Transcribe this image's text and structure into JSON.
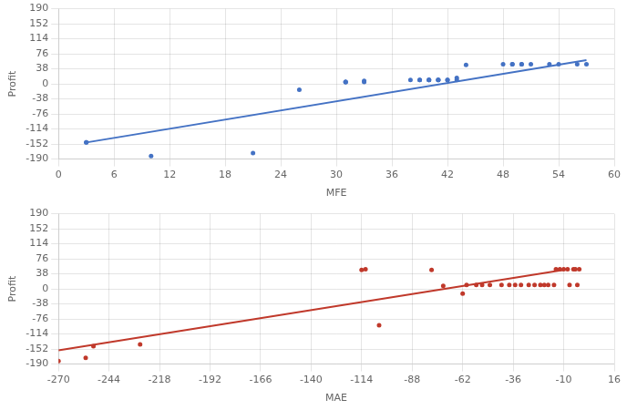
{
  "chart_data": [
    {
      "type": "scatter",
      "xlabel": "MFE",
      "ylabel": "Profit",
      "xlim": [
        0,
        60
      ],
      "xticks": [
        0,
        6,
        12,
        18,
        24,
        30,
        36,
        42,
        48,
        54,
        60
      ],
      "ylim": [
        -190,
        190
      ],
      "yticks": [
        -190,
        -152,
        -114,
        -76,
        -38,
        0,
        38,
        76,
        114,
        152,
        190
      ],
      "grid": true,
      "series": [
        {
          "type": "line",
          "color": "#4472c4",
          "x": [
            3,
            57
          ],
          "values": [
            -148,
            60
          ]
        },
        {
          "type": "scatter",
          "color": "#4472c4",
          "x": [
            3,
            3,
            10,
            21,
            26,
            31,
            31,
            31,
            33,
            33,
            38,
            39,
            39,
            40,
            40,
            40,
            41,
            41,
            41,
            42,
            42,
            43,
            43,
            44,
            48,
            49,
            49,
            50,
            50,
            51,
            53,
            54,
            56,
            57
          ],
          "values": [
            -148,
            -148,
            -182,
            -175,
            -15,
            5,
            5,
            5,
            5,
            8,
            10,
            10,
            10,
            10,
            10,
            10,
            10,
            10,
            10,
            10,
            10,
            10,
            15,
            48,
            50,
            50,
            50,
            50,
            50,
            50,
            50,
            50,
            50,
            50
          ]
        }
      ]
    },
    {
      "type": "scatter",
      "xlabel": "MAE",
      "ylabel": "Profit",
      "xlim": [
        -270,
        16
      ],
      "xticks": [
        -270,
        -244,
        -218,
        -192,
        -166,
        -140,
        -114,
        -88,
        -62,
        -36,
        -10,
        16
      ],
      "ylim": [
        -190,
        190
      ],
      "yticks": [
        -190,
        -152,
        -114,
        -76,
        -38,
        0,
        38,
        76,
        114,
        152,
        190
      ],
      "grid": true,
      "series": [
        {
          "type": "line",
          "color": "#c0392b",
          "x": [
            -270,
            -10
          ],
          "values": [
            -155,
            48
          ]
        },
        {
          "type": "scatter",
          "color": "#c0392b",
          "x": [
            -270,
            -256,
            -252,
            -228,
            -114,
            -112,
            -105,
            -78,
            -72,
            -62,
            -60,
            -55,
            -52,
            -48,
            -42,
            -38,
            -35,
            -32,
            -28,
            -25,
            -22,
            -20,
            -18,
            -15,
            -14,
            -12,
            -10,
            -8,
            -7,
            -5,
            -4,
            -3,
            -2
          ],
          "values": [
            -182,
            -174,
            -145,
            -140,
            48,
            50,
            -92,
            48,
            8,
            -12,
            10,
            10,
            10,
            10,
            10,
            10,
            10,
            10,
            10,
            10,
            10,
            10,
            10,
            10,
            50,
            50,
            50,
            50,
            10,
            50,
            50,
            10,
            50
          ]
        }
      ]
    }
  ]
}
